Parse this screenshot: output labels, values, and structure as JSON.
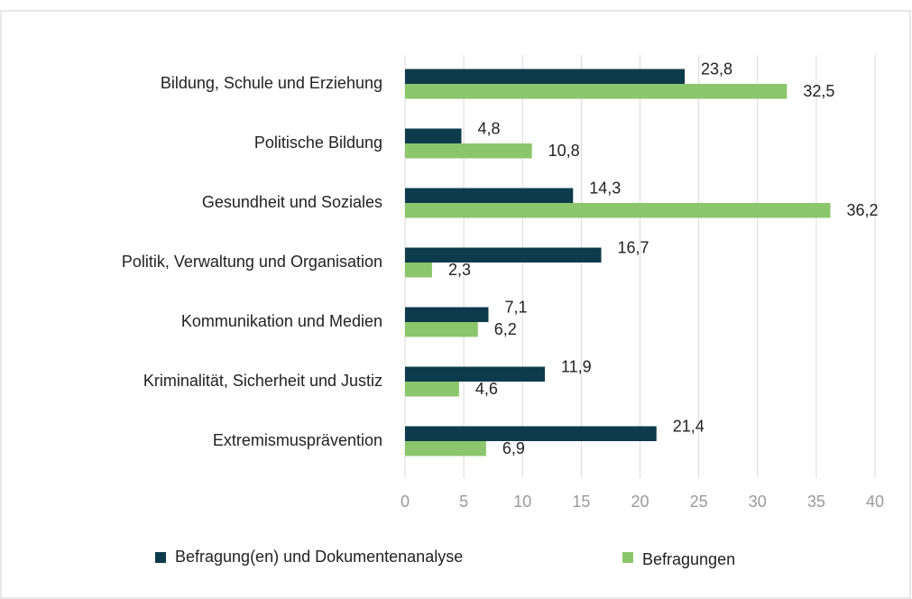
{
  "chart_data": {
    "type": "bar",
    "orientation": "horizontal",
    "categories": [
      "Bildung, Schule und Erziehung",
      "Politische Bildung",
      "Gesundheit und Soziales",
      "Politik, Verwaltung und Organisation",
      "Kommunikation und Medien",
      "Kriminalität, Sicherheit und Justiz",
      "Extremismusprävention"
    ],
    "series": [
      {
        "name": "Befragung(en) und Dokumentenanalyse",
        "color": "#0e3b4b",
        "values": [
          23.8,
          4.8,
          14.3,
          16.7,
          7.1,
          11.9,
          21.4
        ],
        "value_labels": [
          "23,8",
          "4,8",
          "14,3",
          "16,7",
          "7,1",
          "11,9",
          "21,4"
        ]
      },
      {
        "name": "Befragungen",
        "color": "#8cc66c",
        "values": [
          32.5,
          10.8,
          36.2,
          2.3,
          6.2,
          4.6,
          6.9
        ],
        "value_labels": [
          "32,5",
          "10,8",
          "36,2",
          "2,3",
          "6,2",
          "4,6",
          "6,9"
        ]
      }
    ],
    "xlim": [
      0,
      40
    ],
    "xticks": [
      0,
      5,
      10,
      15,
      20,
      25,
      30,
      35,
      40
    ],
    "grid": true,
    "legend": "bottom"
  }
}
